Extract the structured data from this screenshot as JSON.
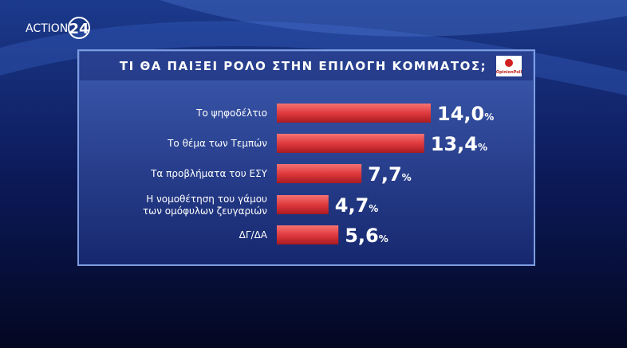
{
  "chart_data": {
    "type": "hbar",
    "title": "ΤΙ ΘΑ ΠΑΙΞΕΙ ΡΟΛΟ ΣΤΗΝ ΕΠΙΛΟΓΗ ΚΟΜΜΑΤΟΣ;",
    "logo": "ACTION",
    "logo_number": "24",
    "source": "OpinionPoll",
    "categories": [
      "Το ψηφοδέλτιο",
      "Το θέμα των Τεμπών",
      "Τα προβλήματα του ΕΣΥ",
      "Η νομοθέτηση του γάμου\nτων ομόφυλων ζευγαριών",
      "ΔΓ/ΔΑ"
    ],
    "values": [
      14.0,
      13.4,
      7.7,
      4.7,
      5.6
    ],
    "value_labels": [
      "14,0%",
      "13,4%",
      "7,7%",
      "4,7%",
      "5,6%"
    ],
    "color": "#e03a3e"
  }
}
